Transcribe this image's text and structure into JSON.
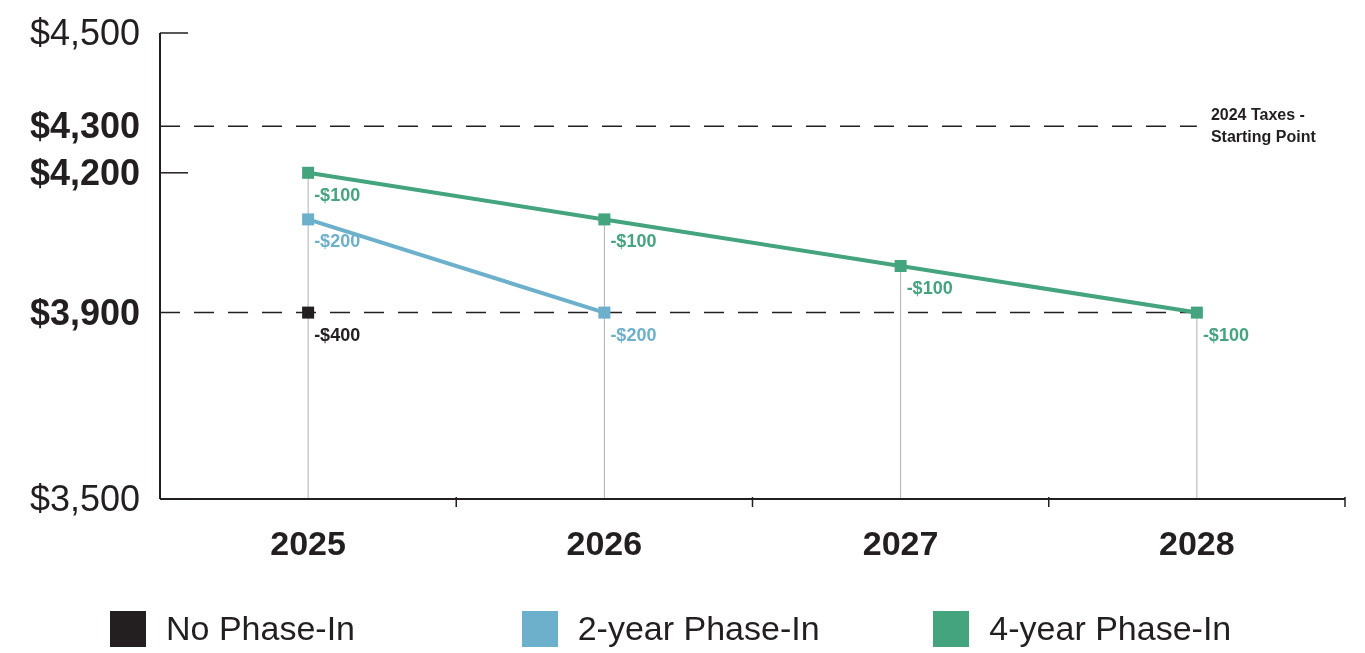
{
  "chart_data": {
    "type": "line",
    "categories": [
      "2025",
      "2026",
      "2027",
      "2028"
    ],
    "series": [
      {
        "name": "No Phase-In",
        "color": "#231f20",
        "values": [
          3900,
          null,
          null,
          null
        ]
      },
      {
        "name": "2-year Phase-In",
        "color": "#6cb0cc",
        "values": [
          4100,
          3900,
          null,
          null
        ]
      },
      {
        "name": "4-year Phase-In",
        "color": "#44a47e",
        "values": [
          4200,
          4100,
          4000,
          3900
        ]
      }
    ],
    "ylim": [
      3500,
      4500
    ],
    "yticks": [
      {
        "value": 3500,
        "label": "$3,500"
      },
      {
        "value": 3900,
        "label": "$3,900"
      },
      {
        "value": 4200,
        "label": "$4,200"
      },
      {
        "value": 4300,
        "label": "$4,300"
      },
      {
        "value": 4500,
        "label": "$4,500"
      }
    ],
    "ref_lines": [
      {
        "axis": "y",
        "value": 4300,
        "label": "2024 Taxes - Starting Point",
        "color": "#231f20",
        "line_style": "dashed"
      },
      {
        "axis": "y",
        "value": 3900,
        "color": "#231f20",
        "line_style": "dashed"
      }
    ],
    "annotations": [
      {
        "text": "-$400",
        "x": "2025",
        "y": 3900
      },
      {
        "text": "-$200",
        "x": "2025",
        "y": 4100
      },
      {
        "text": "-$200",
        "x": "2026",
        "y": 3900
      },
      {
        "text": "-$100",
        "x": "2025",
        "y": 4200
      },
      {
        "text": "-$100",
        "x": "2026",
        "y": 4100
      },
      {
        "text": "-$100",
        "x": "2027",
        "y": 4000
      },
      {
        "text": "-$100",
        "x": "2028",
        "y": 3900
      }
    ],
    "marker": "square",
    "line_style": "solid",
    "grid": "x",
    "legend": "bottom"
  }
}
